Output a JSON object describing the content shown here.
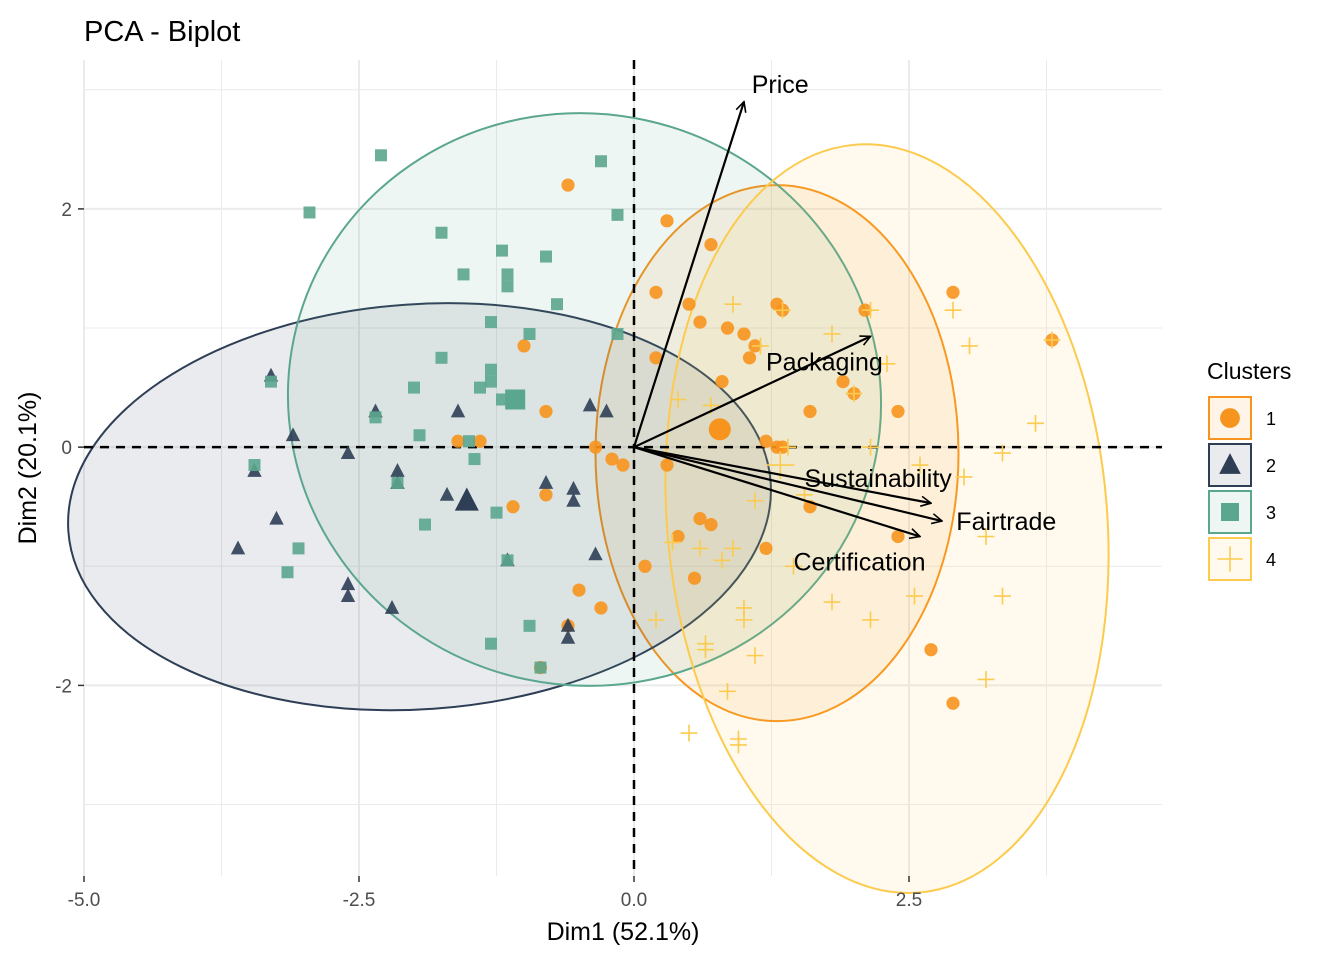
{
  "chart_data": {
    "type": "scatter",
    "subtype": "pca-biplot-clusters",
    "title": "PCA - Biplot",
    "xlabel": "Dim1 (52.1%)",
    "ylabel": "Dim2 (20.1%)",
    "xlim": [
      -5.0,
      4.8
    ],
    "ylim": [
      -3.6,
      3.25
    ],
    "xticks": [
      -5.0,
      -2.5,
      0.0,
      2.5
    ],
    "xtick_labels": [
      "-5.0",
      "-2.5",
      "0.0",
      "2.5"
    ],
    "yticks": [
      -2,
      0,
      2
    ],
    "ytick_labels": [
      "-2",
      "0",
      "2"
    ],
    "grid": true,
    "reference_lines": {
      "x": 0,
      "y": 0,
      "style": "dashed"
    },
    "legend": {
      "title": "Clusters",
      "position": "right"
    },
    "variables": [
      {
        "name": "Price",
        "x": 1.0,
        "y": 2.9
      },
      {
        "name": "Packaging",
        "x": 2.15,
        "y": 0.93
      },
      {
        "name": "Sustainability",
        "x": 2.7,
        "y": -0.47
      },
      {
        "name": "Fairtrade",
        "x": 2.8,
        "y": -0.62
      },
      {
        "name": "Certification",
        "x": 2.6,
        "y": -0.75
      }
    ],
    "variable_label_positions": {
      "Price": [
        1.07,
        3.05
      ],
      "Packaging": [
        1.2,
        0.72
      ],
      "Sustainability": [
        1.55,
        -0.26
      ],
      "Fairtrade": [
        2.93,
        -0.62
      ],
      "Certification": [
        1.45,
        -0.96
      ]
    },
    "series": [
      {
        "name": "1",
        "color": "#F7941D",
        "marker": "circle",
        "centroid": [
          0.78,
          0.15
        ],
        "ellipse": {
          "cx": 1.3,
          "cy": -0.05,
          "rx": 1.65,
          "ry": 2.25,
          "angle": 0
        },
        "points": [
          [
            -0.6,
            2.2
          ],
          [
            0.3,
            1.9
          ],
          [
            0.7,
            1.7
          ],
          [
            0.2,
            1.3
          ],
          [
            0.5,
            1.2
          ],
          [
            1.3,
            1.2
          ],
          [
            1.35,
            1.15
          ],
          [
            2.1,
            1.15
          ],
          [
            2.9,
            1.3
          ],
          [
            3.8,
            0.9
          ],
          [
            0.6,
            1.05
          ],
          [
            0.85,
            1.0
          ],
          [
            1.0,
            0.95
          ],
          [
            1.1,
            0.85
          ],
          [
            -1.0,
            0.85
          ],
          [
            1.05,
            0.75
          ],
          [
            0.2,
            0.75
          ],
          [
            0.8,
            0.55
          ],
          [
            1.9,
            0.55
          ],
          [
            2.0,
            0.45
          ],
          [
            1.6,
            0.3
          ],
          [
            2.4,
            0.3
          ],
          [
            -0.8,
            0.3
          ],
          [
            -1.6,
            0.05
          ],
          [
            1.2,
            0.05
          ],
          [
            -0.35,
            0.0
          ],
          [
            1.3,
            0.0
          ],
          [
            1.35,
            0.0
          ],
          [
            -1.4,
            0.05
          ],
          [
            -0.2,
            -0.1
          ],
          [
            0.3,
            -0.15
          ],
          [
            -0.1,
            -0.15
          ],
          [
            -0.8,
            -0.4
          ],
          [
            -1.1,
            -0.5
          ],
          [
            1.6,
            -0.5
          ],
          [
            0.6,
            -0.6
          ],
          [
            0.7,
            -0.65
          ],
          [
            0.4,
            -0.75
          ],
          [
            2.4,
            -0.75
          ],
          [
            1.2,
            -0.85
          ],
          [
            0.1,
            -1.0
          ],
          [
            0.55,
            -1.1
          ],
          [
            -0.5,
            -1.2
          ],
          [
            -0.3,
            -1.35
          ],
          [
            -0.6,
            -1.5
          ],
          [
            2.7,
            -1.7
          ],
          [
            2.9,
            -2.15
          ],
          [
            -0.85,
            -1.85
          ]
        ]
      },
      {
        "name": "2",
        "color": "#2E3E55",
        "marker": "triangle",
        "centroid": [
          -1.52,
          -0.45
        ],
        "ellipse": {
          "cx": -1.95,
          "cy": -0.5,
          "rx": 3.2,
          "ry": 1.7,
          "angle": -4
        },
        "points": [
          [
            -3.3,
            0.6
          ],
          [
            -2.35,
            0.3
          ],
          [
            -1.6,
            0.3
          ],
          [
            -0.4,
            0.35
          ],
          [
            -0.25,
            0.3
          ],
          [
            -3.1,
            0.1
          ],
          [
            -2.6,
            -0.05
          ],
          [
            -3.45,
            -0.2
          ],
          [
            -2.15,
            -0.2
          ],
          [
            -2.15,
            -0.3
          ],
          [
            -0.8,
            -0.3
          ],
          [
            -0.55,
            -0.35
          ],
          [
            -1.7,
            -0.4
          ],
          [
            -0.55,
            -0.45
          ],
          [
            -3.25,
            -0.6
          ],
          [
            -1.15,
            -0.95
          ],
          [
            -0.35,
            -0.9
          ],
          [
            -3.6,
            -0.85
          ],
          [
            -2.6,
            -1.15
          ],
          [
            -2.6,
            -1.25
          ],
          [
            -2.2,
            -1.35
          ],
          [
            -0.6,
            -1.5
          ],
          [
            -0.6,
            -1.6
          ]
        ]
      },
      {
        "name": "3",
        "color": "#5BA68E",
        "marker": "square",
        "centroid": [
          -1.08,
          0.4
        ],
        "ellipse": {
          "cx": -0.45,
          "cy": 0.4,
          "rx": 2.7,
          "ry": 2.4,
          "angle": 12
        },
        "points": [
          [
            -2.3,
            2.45
          ],
          [
            -0.3,
            2.4
          ],
          [
            -2.95,
            1.97
          ],
          [
            -0.15,
            1.95
          ],
          [
            -1.75,
            1.8
          ],
          [
            -1.2,
            1.65
          ],
          [
            -0.8,
            1.6
          ],
          [
            -1.15,
            1.45
          ],
          [
            -1.55,
            1.45
          ],
          [
            -1.15,
            1.35
          ],
          [
            -0.7,
            1.2
          ],
          [
            -1.3,
            1.05
          ],
          [
            -0.95,
            0.95
          ],
          [
            -0.15,
            0.95
          ],
          [
            -1.75,
            0.75
          ],
          [
            -1.3,
            0.65
          ],
          [
            -1.3,
            0.55
          ],
          [
            -3.3,
            0.55
          ],
          [
            -1.4,
            0.5
          ],
          [
            -2.0,
            0.5
          ],
          [
            -1.1,
            0.4
          ],
          [
            -1.2,
            0.4
          ],
          [
            -2.35,
            0.25
          ],
          [
            -1.95,
            0.1
          ],
          [
            -1.5,
            0.05
          ],
          [
            -1.45,
            -0.1
          ],
          [
            -3.45,
            -0.15
          ],
          [
            -2.15,
            -0.3
          ],
          [
            -1.25,
            -0.55
          ],
          [
            -1.9,
            -0.65
          ],
          [
            -3.05,
            -0.85
          ],
          [
            -1.15,
            -0.95
          ],
          [
            -3.15,
            -1.05
          ],
          [
            -0.95,
            -1.5
          ],
          [
            -1.3,
            -1.65
          ],
          [
            -0.85,
            -1.85
          ]
        ]
      },
      {
        "name": "4",
        "color": "#FCCB4E",
        "marker": "plus",
        "centroid": [
          1.33,
          -0.15
        ],
        "ellipse": {
          "cx": 2.3,
          "cy": -0.6,
          "rx": 2.0,
          "ry": 3.15,
          "angle": -5
        },
        "points": [
          [
            0.9,
            1.2
          ],
          [
            1.35,
            1.15
          ],
          [
            2.15,
            1.15
          ],
          [
            2.9,
            1.15
          ],
          [
            3.8,
            0.9
          ],
          [
            1.8,
            0.95
          ],
          [
            1.15,
            0.85
          ],
          [
            3.05,
            0.85
          ],
          [
            2.3,
            0.7
          ],
          [
            2.0,
            0.45
          ],
          [
            0.4,
            0.4
          ],
          [
            0.7,
            0.35
          ],
          [
            3.65,
            0.2
          ],
          [
            2.15,
            0.0
          ],
          [
            1.4,
            0.0
          ],
          [
            3.35,
            -0.05
          ],
          [
            2.6,
            -0.15
          ],
          [
            3.0,
            -0.25
          ],
          [
            1.55,
            -0.4
          ],
          [
            1.1,
            -0.45
          ],
          [
            3.2,
            -0.75
          ],
          [
            0.35,
            -0.8
          ],
          [
            0.6,
            -0.85
          ],
          [
            0.9,
            -0.85
          ],
          [
            0.8,
            -0.95
          ],
          [
            1.45,
            -1.0
          ],
          [
            2.55,
            -1.25
          ],
          [
            3.35,
            -1.25
          ],
          [
            1.8,
            -1.3
          ],
          [
            1.0,
            -1.35
          ],
          [
            1.0,
            -1.45
          ],
          [
            2.15,
            -1.45
          ],
          [
            0.2,
            -1.45
          ],
          [
            0.65,
            -1.65
          ],
          [
            0.65,
            -1.7
          ],
          [
            1.1,
            -1.75
          ],
          [
            3.2,
            -1.95
          ],
          [
            0.85,
            -2.05
          ],
          [
            0.5,
            -2.4
          ],
          [
            0.95,
            -2.45
          ],
          [
            0.95,
            -2.5
          ]
        ]
      }
    ]
  }
}
